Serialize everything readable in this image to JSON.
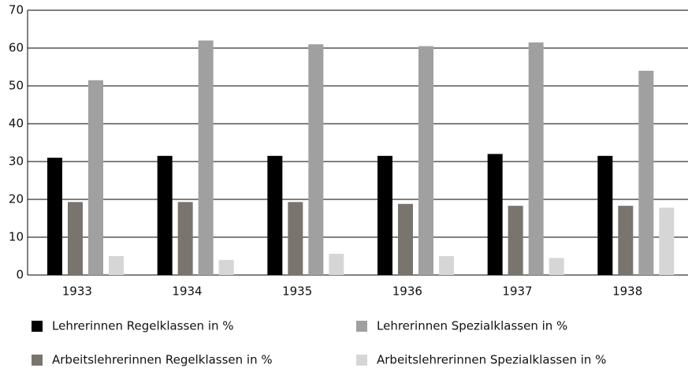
{
  "chart_data": {
    "type": "bar",
    "categories": [
      "1933",
      "1934",
      "1935",
      "1936",
      "1937",
      "1938"
    ],
    "series": [
      {
        "name": "Lehrerinnen Regelklassen in %",
        "color": "#000000",
        "values": [
          31,
          31.5,
          31.5,
          31.5,
          32,
          31.5
        ]
      },
      {
        "name": "Arbeitslehrerinnen Regelklassen in %",
        "color": "#79746e",
        "values": [
          19.3,
          19.3,
          19.3,
          18.8,
          18.3,
          18.3
        ]
      },
      {
        "name": "Lehrerinnen Spezialklassen in %",
        "color": "#a0a0a0",
        "values": [
          51.5,
          62,
          61,
          60.5,
          61.5,
          54
        ]
      },
      {
        "name": "Arbeitslehrerinnen Spezialklassen in %",
        "color": "#d6d6d6",
        "values": [
          5,
          4,
          5.6,
          5,
          4.5,
          17.8
        ]
      }
    ],
    "ylim": [
      0,
      70
    ],
    "yticks": [
      0,
      10,
      20,
      30,
      40,
      50,
      60,
      70
    ],
    "grid": true
  }
}
